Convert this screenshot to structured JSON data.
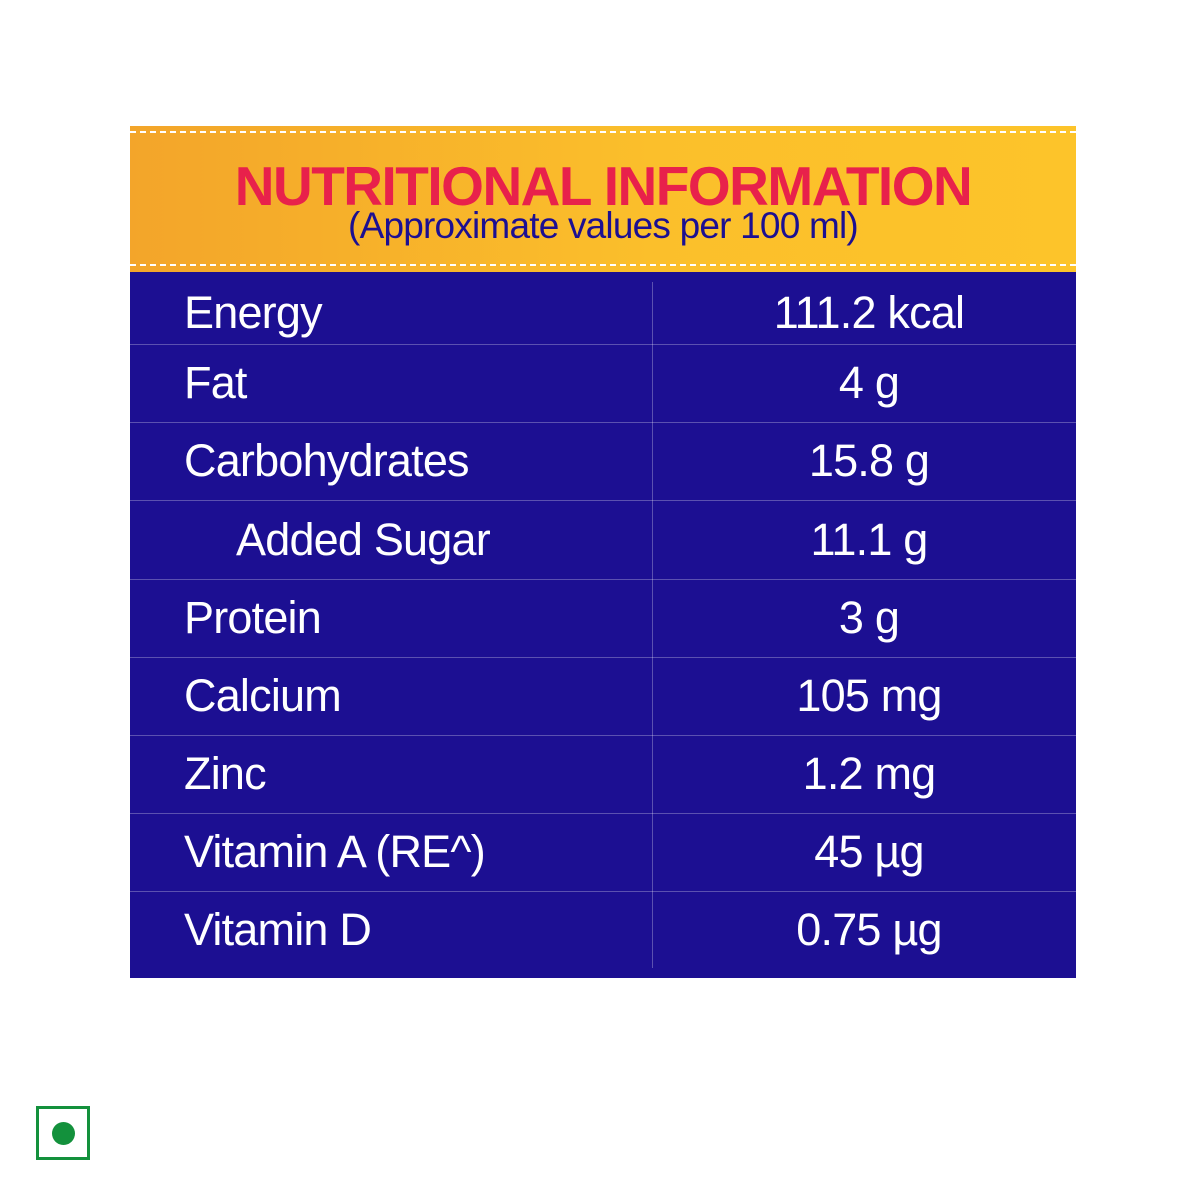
{
  "header": {
    "title": "NUTRITIONAL INFORMATION",
    "subtitle": "(Approximate values per 100 ml)"
  },
  "nutrients": [
    {
      "label": "Energy",
      "value": "111.2 kcal",
      "indent": false
    },
    {
      "label": "Fat",
      "value": "4 g",
      "indent": false
    },
    {
      "label": "Carbohydrates",
      "value": "15.8 g",
      "indent": false
    },
    {
      "label": "Added Sugar",
      "value": "11.1 g",
      "indent": true
    },
    {
      "label": "Protein",
      "value": "3 g",
      "indent": false
    },
    {
      "label": "Calcium",
      "value": "105 mg",
      "indent": false
    },
    {
      "label": "Zinc",
      "value": "1.2 mg",
      "indent": false
    },
    {
      "label": "Vitamin A (RE^)",
      "value": "45 µg",
      "indent": false
    },
    {
      "label": "Vitamin D",
      "value": "0.75 µg",
      "indent": false
    }
  ],
  "colors": {
    "panel": "#1c0f92",
    "header_gradient_start": "#f3a52a",
    "header_gradient_end": "#fdc42a",
    "title": "#e8214b",
    "veg_mark": "#13913c"
  },
  "icons": {
    "veg_mark": "vegetarian-mark-icon"
  }
}
